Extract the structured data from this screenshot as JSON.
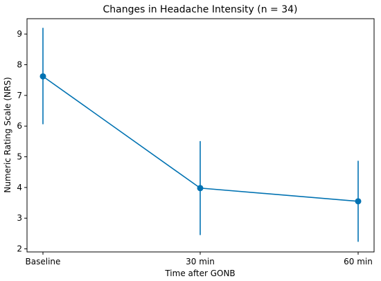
{
  "chart_data": {
    "type": "line",
    "title": "Changes in Headache Intensity (n = 34)",
    "xlabel": "Time after GONB",
    "ylabel": "Numeric Rating Scale (NRS)",
    "categories": [
      "Baseline",
      "30 min",
      "60 min"
    ],
    "series": [
      {
        "values": [
          7.62,
          3.98,
          3.55
        ],
        "error_low": [
          6.06,
          2.45,
          2.23
        ],
        "error_high": [
          9.2,
          5.51,
          4.87
        ],
        "color": "#0072b2"
      }
    ],
    "ylim": [
      1.9,
      9.5
    ],
    "yticks": [
      2,
      3,
      4,
      5,
      6,
      7,
      8,
      9
    ],
    "grid": false,
    "legend": "none"
  }
}
